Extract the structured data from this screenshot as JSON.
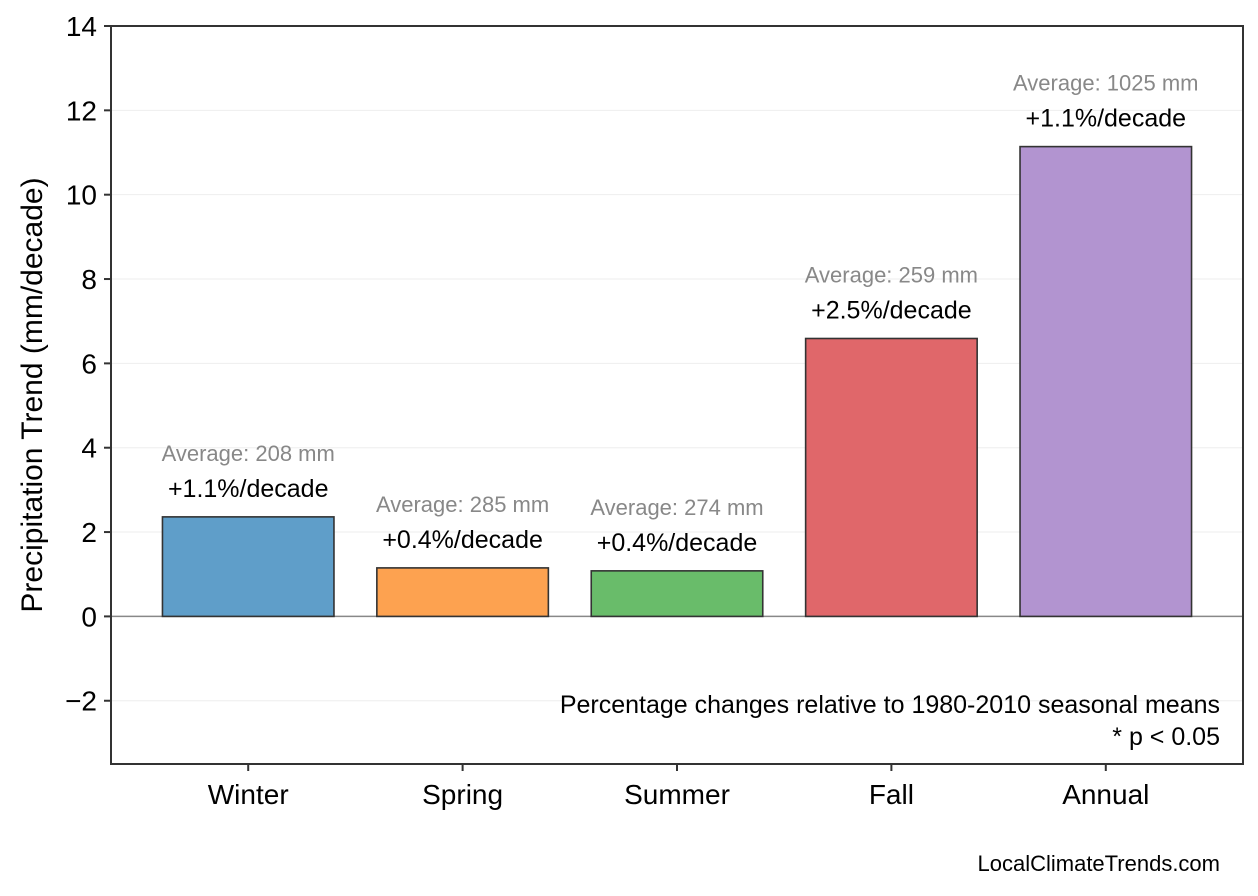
{
  "chart_data": {
    "type": "bar",
    "title": "",
    "xlabel": "",
    "ylabel": "Precipitation Trend (mm/decade)",
    "categories": [
      "Winter",
      "Spring",
      "Summer",
      "Fall",
      "Annual"
    ],
    "values": [
      2.36,
      1.15,
      1.08,
      6.59,
      11.14
    ],
    "colors": [
      "#5f9ec9",
      "#fda250",
      "#69bc6a",
      "#e0676a",
      "#b294d0"
    ],
    "average_labels": [
      "Average: 208 mm",
      "Average: 285 mm",
      "Average: 274 mm",
      "Average: 259 mm",
      "Average: 1025 mm"
    ],
    "percent_labels": [
      "+1.1%/decade",
      "+0.4%/decade",
      "+0.4%/decade",
      "+2.5%/decade",
      "+1.1%/decade"
    ],
    "ylim": [
      -3.5,
      14
    ],
    "yticks": [
      -2,
      0,
      2,
      4,
      6,
      8,
      10,
      12,
      14
    ],
    "ytick_labels": [
      "−2",
      "0",
      "2",
      "4",
      "6",
      "8",
      "10",
      "12",
      "14"
    ],
    "grid": true,
    "annotations": [
      "Percentage changes relative to 1980-2010 seasonal means",
      "* p < 0.05"
    ],
    "source": "LocalClimateTrends.com"
  }
}
